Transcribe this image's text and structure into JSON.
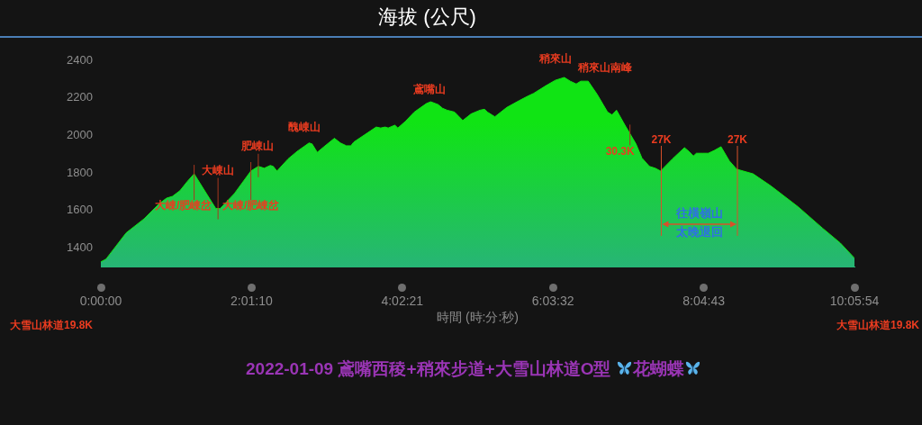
{
  "chart_data": {
    "type": "area",
    "title": "海拔 (公尺)",
    "xlabel": "時間 (時:分:秒)",
    "x": [
      0,
      0.07,
      0.34,
      0.58,
      0.78,
      0.88,
      0.96,
      1.06,
      1.16,
      1.25,
      1.54,
      1.57,
      1.6,
      1.79,
      2.01,
      2.11,
      2.19,
      2.27,
      2.31,
      2.36,
      2.51,
      2.63,
      2.79,
      2.83,
      2.9,
      2.99,
      3.13,
      3.21,
      3.29,
      3.35,
      3.39,
      3.69,
      3.75,
      3.81,
      3.85,
      3.94,
      3.98,
      4.08,
      4.2,
      4.36,
      4.42,
      4.52,
      4.58,
      4.64,
      4.74,
      4.85,
      4.96,
      5.08,
      5.14,
      5.18,
      5.24,
      5.28,
      5.44,
      5.6,
      5.72,
      5.8,
      5.96,
      6.09,
      6.21,
      6.29,
      6.37,
      6.43,
      6.53,
      6.65,
      6.79,
      6.85,
      6.91,
      7.03,
      7.09,
      7.17,
      7.25,
      7.35,
      7.43,
      7.5,
      7.66,
      7.82,
      7.88,
      7.94,
      7.98,
      8.06,
      8.14,
      8.22,
      8.31,
      8.42,
      8.52,
      8.74,
      8.98,
      9.34,
      9.67,
      9.91,
      10.0983
    ],
    "series": [
      {
        "color": "#10e414",
        "values": [
          1325,
          1340,
          1480,
          1555,
          1635,
          1665,
          1675,
          1705,
          1755,
          1795,
          1610,
          1610,
          1610,
          1690,
          1810,
          1835,
          1825,
          1840,
          1835,
          1810,
          1875,
          1915,
          1960,
          1955,
          1910,
          1940,
          1985,
          1960,
          1945,
          1945,
          1965,
          2045,
          2040,
          2045,
          2040,
          2055,
          2040,
          2075,
          2125,
          2170,
          2180,
          2165,
          2145,
          2135,
          2125,
          2080,
          2115,
          2135,
          2140,
          2125,
          2110,
          2100,
          2150,
          2185,
          2210,
          2225,
          2265,
          2295,
          2310,
          2290,
          2275,
          2290,
          2290,
          2220,
          2125,
          2110,
          2135,
          2050,
          2010,
          1955,
          1880,
          1835,
          1825,
          1810,
          1875,
          1935,
          1915,
          1890,
          1905,
          1905,
          1905,
          1920,
          1940,
          1865,
          1820,
          1795,
          1730,
          1620,
          1505,
          1425,
          1345
        ]
      }
    ],
    "xlim": [
      0,
      10.0983
    ],
    "xticks": [
      {
        "value": 0,
        "label": "0:00:00"
      },
      {
        "value": 2.0194,
        "label": "2:01:10"
      },
      {
        "value": 4.0392,
        "label": "4:02:21"
      },
      {
        "value": 6.0589,
        "label": "6:03:32"
      },
      {
        "value": 8.0786,
        "label": "8:04:43"
      },
      {
        "value": 10.0983,
        "label": "10:05:54"
      }
    ],
    "ylim": [
      1300,
      2400
    ],
    "yticks": [
      1400,
      1600,
      1800,
      2000,
      2200,
      2400
    ],
    "ref_lines": [
      {
        "axis": "x",
        "value": 7.51,
        "label": "27K",
        "color": "#d9502a"
      },
      {
        "axis": "x",
        "value": 8.53,
        "label": "27K",
        "color": "#d9502a"
      }
    ],
    "annotations": [
      {
        "text": "大崠山",
        "x": 1.57,
        "y": 1610
      },
      {
        "text": "大崠/肥崠岔",
        "x": 1.25,
        "y": 1795
      },
      {
        "text": "大崠/肥崠岔",
        "x": 2.01,
        "y": 1810
      },
      {
        "text": "肥崠山",
        "x": 2.11,
        "y": 1835
      },
      {
        "text": "醜崠山",
        "x": 2.79,
        "y": 1960
      },
      {
        "text": "鳶嘴山",
        "x": 4.42,
        "y": 2180
      },
      {
        "text": "稍來山",
        "x": 6.21,
        "y": 2310
      },
      {
        "text": "稍來山南峰",
        "x": 6.53,
        "y": 2290
      },
      {
        "text": "30.3K",
        "x": 7.09,
        "y": 2010
      },
      "大雪山林道19.8K",
      "大雪山林道19.8K",
      "往橫嶺山太晚退回",
      "2022-01-09 鳶嘴西稜+稍來步道+大雪山林道O型 花蝴蝶"
    ]
  }
}
